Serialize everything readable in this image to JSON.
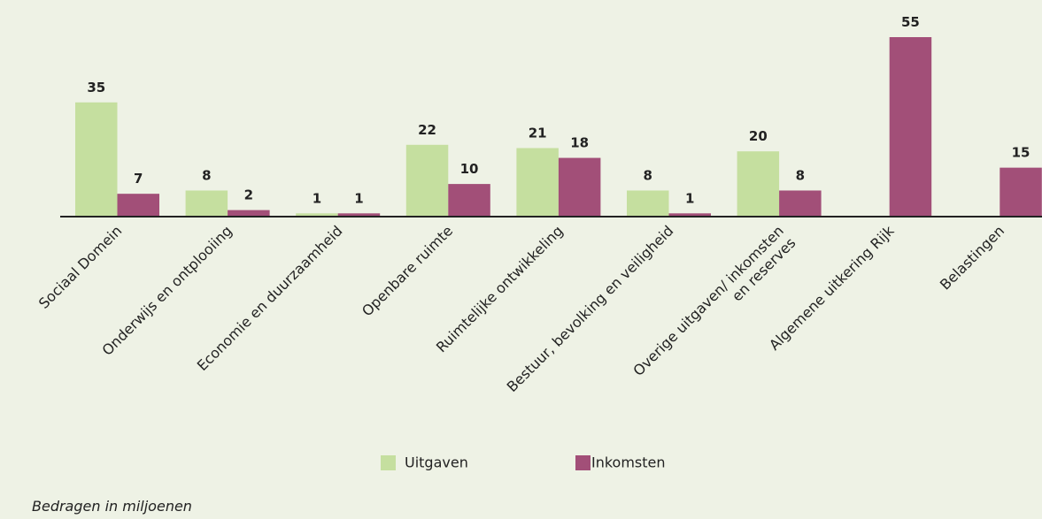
{
  "chart_data": {
    "type": "bar",
    "categories": [
      "Sociaal Domein",
      "Onderwijs en ontplooiing",
      "Economie en duurzaamheid",
      "Openbare ruimte",
      "Ruimtelijke ontwikkeling",
      "Bestuur, bevolking en veiligheid",
      "Overige uitgaven/ inkomsten\nen reserves",
      "Algemene uitkering Rijk",
      "Belastingen"
    ],
    "series": [
      {
        "name": "Uitgaven",
        "color": "#c5df9f",
        "values": [
          35,
          8,
          1,
          22,
          21,
          8,
          20,
          null,
          null
        ]
      },
      {
        "name": "Inkomsten",
        "color": "#a24f78",
        "values": [
          7,
          2,
          1,
          10,
          18,
          1,
          8,
          55,
          15
        ]
      }
    ],
    "ylim": [
      0,
      55
    ],
    "note": "Bedragen in miljoenen"
  }
}
